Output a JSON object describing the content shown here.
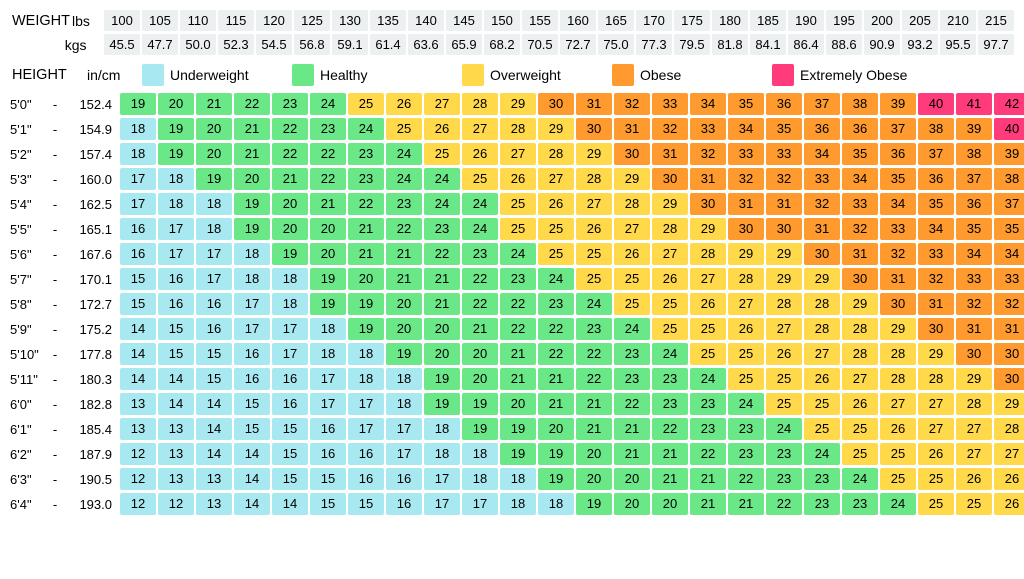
{
  "labels": {
    "weight": "WEIGHT",
    "lbs": "lbs",
    "kgs": "kgs",
    "height": "HEIGHT",
    "incm": "in/cm"
  },
  "colors": {
    "underweight": "#a8e8f0",
    "healthy": "#6ae888",
    "overweight": "#ffd94a",
    "obese": "#ff9a2e",
    "extreme": "#ff3b7b",
    "header_bg": "#ecf0f0"
  },
  "legend": [
    {
      "key": "underweight",
      "label": "Underweight"
    },
    {
      "key": "healthy",
      "label": "Healthy"
    },
    {
      "key": "overweight",
      "label": "Overweight"
    },
    {
      "key": "obese",
      "label": "Obese"
    },
    {
      "key": "extreme",
      "label": "Extremely Obese"
    }
  ],
  "weights_lbs": [
    100,
    105,
    110,
    115,
    120,
    125,
    130,
    135,
    140,
    145,
    150,
    155,
    160,
    165,
    170,
    175,
    180,
    185,
    190,
    195,
    200,
    205,
    210,
    215
  ],
  "weights_kgs": [
    "45.5",
    "47.7",
    "50.0",
    "52.3",
    "54.5",
    "56.8",
    "59.1",
    "61.4",
    "63.6",
    "65.9",
    "68.2",
    "70.5",
    "72.7",
    "75.0",
    "77.3",
    "79.5",
    "81.8",
    "84.1",
    "86.4",
    "88.6",
    "90.9",
    "93.2",
    "95.5",
    "97.7"
  ],
  "heights": [
    {
      "in": "5'0\"",
      "cm": "152.4",
      "bmi": [
        19,
        20,
        21,
        22,
        23,
        24,
        25,
        26,
        27,
        28,
        29,
        30,
        31,
        32,
        33,
        34,
        35,
        36,
        37,
        38,
        39,
        40,
        41,
        42
      ]
    },
    {
      "in": "5'1\"",
      "cm": "154.9",
      "bmi": [
        18,
        19,
        20,
        21,
        22,
        23,
        24,
        25,
        26,
        27,
        28,
        29,
        30,
        31,
        32,
        33,
        34,
        35,
        36,
        36,
        37,
        38,
        39,
        40
      ]
    },
    {
      "in": "5'2\"",
      "cm": "157.4",
      "bmi": [
        18,
        19,
        20,
        21,
        22,
        22,
        23,
        24,
        25,
        26,
        27,
        28,
        29,
        30,
        31,
        32,
        33,
        33,
        34,
        35,
        36,
        37,
        38,
        39
      ]
    },
    {
      "in": "5'3\"",
      "cm": "160.0",
      "bmi": [
        17,
        18,
        19,
        20,
        21,
        22,
        23,
        24,
        24,
        25,
        26,
        27,
        28,
        29,
        30,
        31,
        32,
        32,
        33,
        34,
        35,
        36,
        37,
        38
      ]
    },
    {
      "in": "5'4\"",
      "cm": "162.5",
      "bmi": [
        17,
        18,
        18,
        19,
        20,
        21,
        22,
        23,
        24,
        24,
        25,
        26,
        27,
        28,
        29,
        30,
        31,
        31,
        32,
        33,
        34,
        35,
        36,
        37
      ]
    },
    {
      "in": "5'5\"",
      "cm": "165.1",
      "bmi": [
        16,
        17,
        18,
        19,
        20,
        20,
        21,
        22,
        23,
        24,
        25,
        25,
        26,
        27,
        28,
        29,
        30,
        30,
        31,
        32,
        33,
        34,
        35,
        35
      ]
    },
    {
      "in": "5'6\"",
      "cm": "167.6",
      "bmi": [
        16,
        17,
        17,
        18,
        19,
        20,
        21,
        21,
        22,
        23,
        24,
        25,
        25,
        26,
        27,
        28,
        29,
        29,
        30,
        31,
        32,
        33,
        34,
        34
      ]
    },
    {
      "in": "5'7\"",
      "cm": "170.1",
      "bmi": [
        15,
        16,
        17,
        18,
        18,
        19,
        20,
        21,
        21,
        22,
        23,
        24,
        25,
        25,
        26,
        27,
        28,
        29,
        29,
        30,
        31,
        32,
        33,
        33
      ]
    },
    {
      "in": "5'8\"",
      "cm": "172.7",
      "bmi": [
        15,
        16,
        16,
        17,
        18,
        19,
        19,
        20,
        21,
        22,
        22,
        23,
        24,
        25,
        25,
        26,
        27,
        28,
        28,
        29,
        30,
        31,
        32,
        32
      ]
    },
    {
      "in": "5'9\"",
      "cm": "175.2",
      "bmi": [
        14,
        15,
        16,
        17,
        17,
        18,
        19,
        20,
        20,
        21,
        22,
        22,
        23,
        24,
        25,
        25,
        26,
        27,
        28,
        28,
        29,
        30,
        31,
        31
      ]
    },
    {
      "in": "5'10\"",
      "cm": "177.8",
      "bmi": [
        14,
        15,
        15,
        16,
        17,
        18,
        18,
        19,
        20,
        20,
        21,
        22,
        22,
        23,
        24,
        25,
        25,
        26,
        27,
        28,
        28,
        29,
        30,
        30
      ]
    },
    {
      "in": "5'11\"",
      "cm": "180.3",
      "bmi": [
        14,
        14,
        15,
        16,
        16,
        17,
        18,
        18,
        19,
        20,
        21,
        21,
        22,
        23,
        23,
        24,
        25,
        25,
        26,
        27,
        28,
        28,
        29,
        30
      ]
    },
    {
      "in": "6'0\"",
      "cm": "182.8",
      "bmi": [
        13,
        14,
        14,
        15,
        16,
        17,
        17,
        18,
        19,
        19,
        20,
        21,
        21,
        22,
        23,
        23,
        24,
        25,
        25,
        26,
        27,
        27,
        28,
        29
      ]
    },
    {
      "in": "6'1\"",
      "cm": "185.4",
      "bmi": [
        13,
        13,
        14,
        15,
        15,
        16,
        17,
        17,
        18,
        19,
        19,
        20,
        21,
        21,
        22,
        23,
        23,
        24,
        25,
        25,
        26,
        27,
        27,
        28
      ]
    },
    {
      "in": "6'2\"",
      "cm": "187.9",
      "bmi": [
        12,
        13,
        14,
        14,
        15,
        16,
        16,
        17,
        18,
        18,
        19,
        19,
        20,
        21,
        21,
        22,
        23,
        23,
        24,
        25,
        25,
        26,
        27,
        27
      ]
    },
    {
      "in": "6'3\"",
      "cm": "190.5",
      "bmi": [
        12,
        13,
        13,
        14,
        15,
        15,
        16,
        16,
        17,
        18,
        18,
        19,
        20,
        20,
        21,
        21,
        22,
        23,
        23,
        24,
        25,
        25,
        26,
        26
      ]
    },
    {
      "in": "6'4\"",
      "cm": "193.0",
      "bmi": [
        12,
        12,
        13,
        14,
        14,
        15,
        15,
        16,
        17,
        17,
        18,
        18,
        19,
        20,
        20,
        21,
        21,
        22,
        23,
        23,
        24,
        25,
        25,
        26
      ]
    }
  ],
  "thresholds": {
    "underweight_max": 18,
    "healthy_max": 24,
    "overweight_max": 29,
    "obese_max": 39
  }
}
